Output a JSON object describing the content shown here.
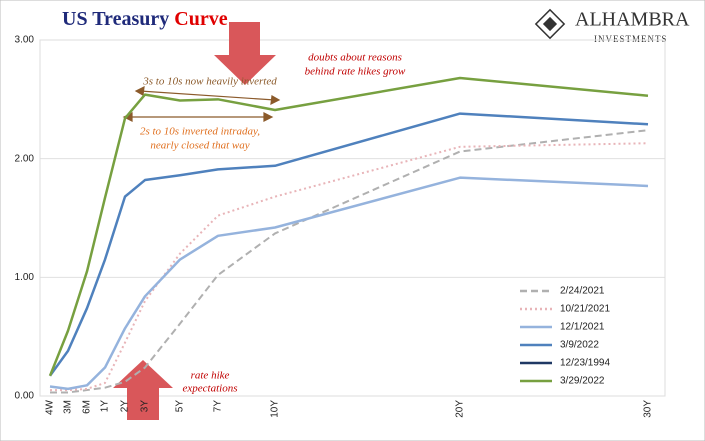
{
  "chart_data": {
    "type": "line",
    "title": "US Treasury",
    "title_highlight": "Curve",
    "logo": [
      "ALHAMBRA",
      "INVESTMENTS"
    ],
    "annotations": {
      "doubts": [
        "doubts about reasons",
        "behind rate hikes grow"
      ],
      "three_ten": "3s to 10s now heavily inverted",
      "two_ten": [
        "2s to 10s inverted intraday,",
        "nearly closed that way"
      ],
      "rate_hike": [
        "rate hike",
        "expectations"
      ]
    },
    "categories": [
      "4W",
      "3M",
      "6M",
      "1Y",
      "2Y",
      "3Y",
      "5Y",
      "7Y",
      "10Y",
      "20Y",
      "30Y"
    ],
    "ylim": [
      0,
      3
    ],
    "yticks": [
      {
        "value": 0,
        "label": "0.00"
      },
      {
        "value": 1,
        "label": "1.00"
      },
      {
        "value": 2,
        "label": "2.00"
      },
      {
        "value": 3,
        "label": "3.00"
      }
    ],
    "grid": true,
    "series": [
      {
        "name": "2/24/2021",
        "color": "#b0b0b0",
        "dash": "dashed",
        "values": [
          0.03,
          0.03,
          0.05,
          0.07,
          0.12,
          0.24,
          0.61,
          1.02,
          1.37,
          2.06,
          2.24
        ]
      },
      {
        "name": "10/21/2021",
        "color": "#e8b4b8",
        "dash": "dotted",
        "values": [
          0.05,
          0.05,
          0.06,
          0.11,
          0.45,
          0.8,
          1.2,
          1.52,
          1.68,
          2.1,
          2.13
        ]
      },
      {
        "name": "12/1/2021",
        "color": "#95b3dd",
        "dash": "solid",
        "values": [
          0.08,
          0.06,
          0.09,
          0.24,
          0.57,
          0.84,
          1.15,
          1.35,
          1.42,
          1.84,
          1.77
        ]
      },
      {
        "name": "3/9/2022",
        "color": "#4f81bd",
        "dash": "solid",
        "values": [
          0.17,
          0.38,
          0.74,
          1.15,
          1.68,
          1.82,
          1.86,
          1.91,
          1.94,
          2.38,
          2.29
        ]
      },
      {
        "name": "12/23/1994",
        "color": "#1f3864",
        "dash": "solid",
        "values": [
          null,
          null,
          null,
          null,
          null,
          null,
          null,
          null,
          null,
          null,
          null
        ]
      },
      {
        "name": "3/29/2022",
        "color": "#77a040",
        "dash": "solid",
        "values": [
          0.17,
          0.55,
          1.05,
          1.67,
          2.34,
          2.54,
          2.49,
          2.5,
          2.41,
          2.68,
          2.53
        ]
      }
    ]
  }
}
